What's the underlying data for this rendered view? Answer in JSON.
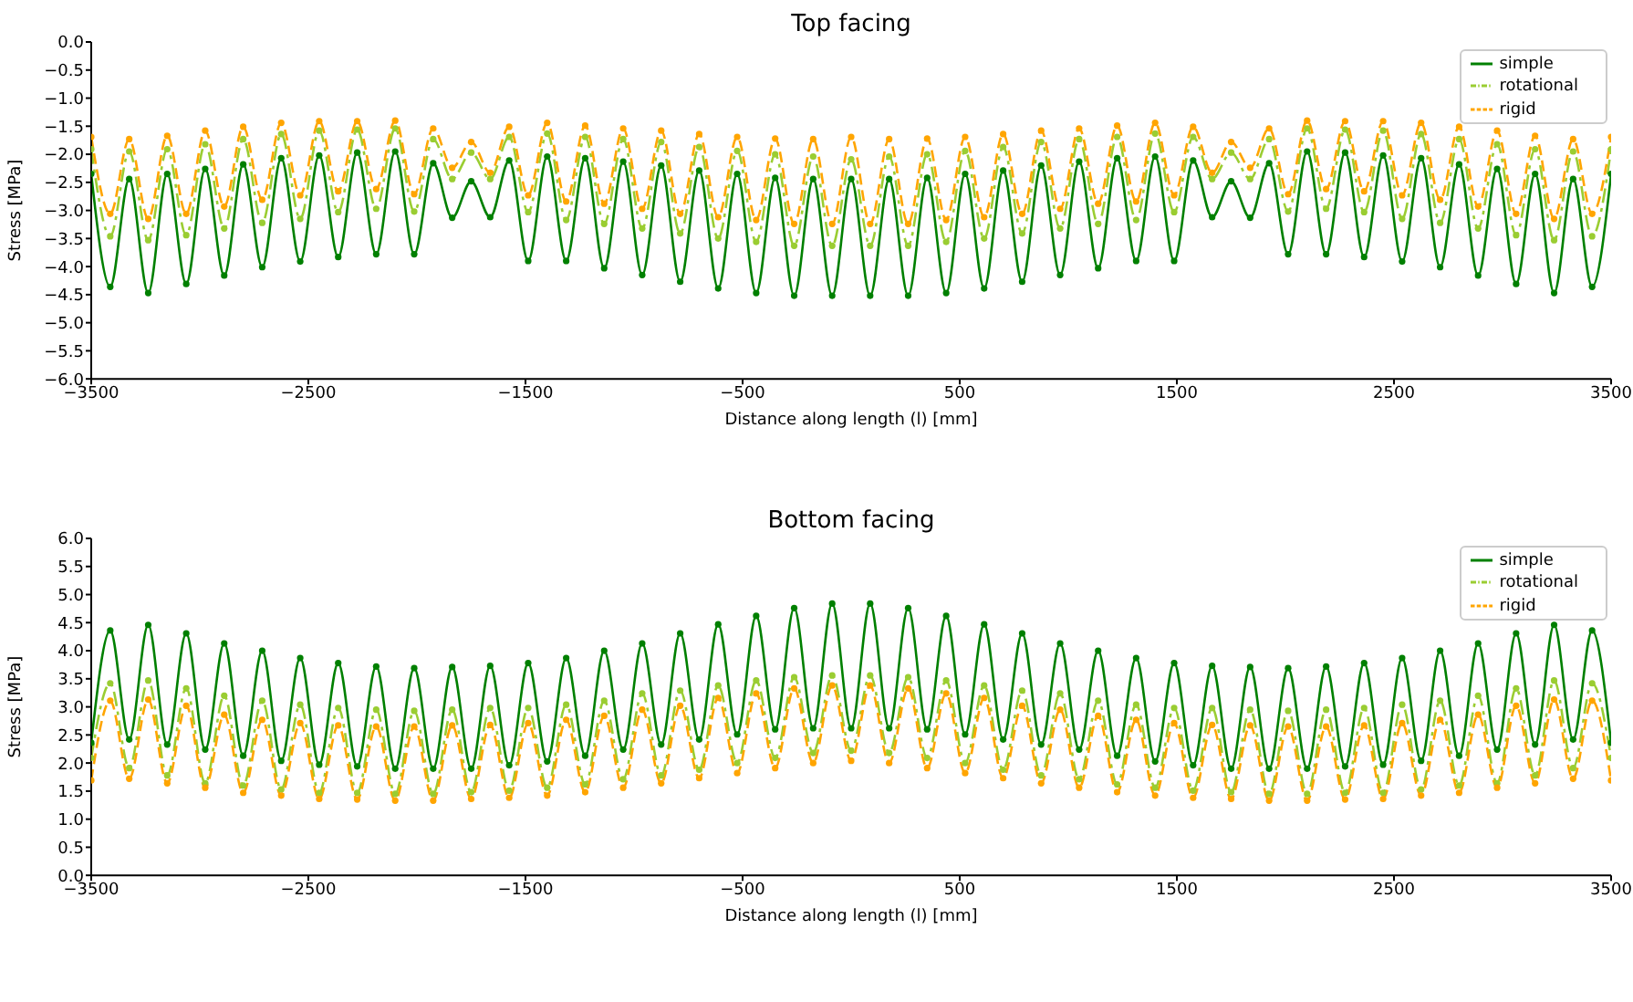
{
  "chart_data": [
    {
      "type": "line",
      "title": "Top facing",
      "xlabel": "Distance along length (l) [mm]",
      "ylabel": "Stress [MPa]",
      "x": [
        -3500,
        -3412.5,
        -3325,
        -3237.5,
        -3150,
        -3062.5,
        -2975,
        -2887.5,
        -2800,
        -2712.5,
        -2625,
        -2537.5,
        -2450,
        -2362.5,
        -2275,
        -2187.5,
        -2100,
        -2012.5,
        -1925,
        -1837.5,
        -1750,
        -1662.5,
        -1575,
        -1487.5,
        -1400,
        -1312.5,
        -1225,
        -1137.5,
        -1050,
        -962.5,
        -875,
        -787.5,
        -700,
        -612.5,
        -525,
        -437.5,
        -350,
        -262.5,
        -175,
        -87.5,
        0,
        87.5,
        175,
        262.5,
        350,
        437.5,
        525,
        612.5,
        700,
        787.5,
        875,
        962.5,
        1050,
        1137.5,
        1225,
        1312.5,
        1400,
        1487.5,
        1575,
        1662.5,
        1750,
        1837.5,
        1925,
        2012.5,
        2100,
        2187.5,
        2275,
        2362.5,
        2450,
        2537.5,
        2625,
        2712.5,
        2800,
        2887.5,
        2975,
        3062.5,
        3150,
        3237.5,
        3325,
        3412.5,
        3500
      ],
      "series": [
        {
          "name": "simple",
          "color": "#008000",
          "line_style": "solid",
          "values": [
            -2.35,
            -4.36,
            -2.44,
            -4.47,
            -2.35,
            -4.31,
            -2.26,
            -4.16,
            -2.18,
            -4.01,
            -2.07,
            -3.91,
            -2.02,
            -3.83,
            -1.97,
            -3.78,
            -1.95,
            -3.78,
            -2.16,
            -3.13,
            -2.48,
            -3.12,
            -2.11,
            -3.9,
            -2.04,
            -3.9,
            -2.07,
            -4.03,
            -2.13,
            -4.15,
            -2.2,
            -4.27,
            -2.29,
            -4.39,
            -2.35,
            -4.47,
            -2.42,
            -4.52,
            -2.44,
            -4.52,
            -2.44,
            -4.52,
            -2.44,
            -4.52,
            -2.42,
            -4.47,
            -2.35,
            -4.39,
            -2.29,
            -4.27,
            -2.2,
            -4.15,
            -2.13,
            -4.03,
            -2.07,
            -3.9,
            -2.04,
            -3.9,
            -2.11,
            -3.12,
            -2.48,
            -3.13,
            -2.16,
            -3.78,
            -1.95,
            -3.78,
            -1.97,
            -3.83,
            -2.02,
            -3.91,
            -2.07,
            -4.01,
            -2.18,
            -4.16,
            -2.26,
            -4.31,
            -2.35,
            -4.47,
            -2.44,
            -4.36,
            -2.35
          ]
        },
        {
          "name": "rotational",
          "color": "#9acd32",
          "line_style": "dashdot",
          "values": [
            -1.91,
            -3.46,
            -1.95,
            -3.53,
            -1.91,
            -3.44,
            -1.82,
            -3.32,
            -1.73,
            -3.22,
            -1.64,
            -3.15,
            -1.58,
            -3.03,
            -1.56,
            -2.97,
            -1.54,
            -3.02,
            -1.73,
            -2.44,
            -1.97,
            -2.44,
            -1.69,
            -3.03,
            -1.63,
            -3.17,
            -1.69,
            -3.24,
            -1.73,
            -3.32,
            -1.78,
            -3.41,
            -1.87,
            -3.5,
            -1.94,
            -3.56,
            -2.0,
            -3.63,
            -2.04,
            -3.63,
            -2.09,
            -3.63,
            -2.04,
            -3.63,
            -2.0,
            -3.56,
            -1.94,
            -3.5,
            -1.87,
            -3.41,
            -1.78,
            -3.32,
            -1.73,
            -3.24,
            -1.69,
            -3.17,
            -1.63,
            -3.03,
            -1.69,
            -2.44,
            -1.97,
            -2.44,
            -1.73,
            -3.02,
            -1.54,
            -2.97,
            -1.56,
            -3.03,
            -1.58,
            -3.15,
            -1.64,
            -3.22,
            -1.73,
            -3.32,
            -1.82,
            -3.44,
            -1.91,
            -3.53,
            -1.95,
            -3.46,
            -1.91
          ]
        },
        {
          "name": "rigid",
          "color": "#ffa500",
          "line_style": "dashed",
          "values": [
            -1.69,
            -3.06,
            -1.73,
            -3.15,
            -1.67,
            -3.06,
            -1.58,
            -2.93,
            -1.51,
            -2.81,
            -1.44,
            -2.73,
            -1.41,
            -2.66,
            -1.41,
            -2.62,
            -1.4,
            -2.71,
            -1.54,
            -2.24,
            -1.78,
            -2.33,
            -1.51,
            -2.73,
            -1.44,
            -2.84,
            -1.49,
            -2.88,
            -1.54,
            -2.97,
            -1.58,
            -3.06,
            -1.64,
            -3.12,
            -1.69,
            -3.17,
            -1.72,
            -3.24,
            -1.73,
            -3.24,
            -1.69,
            -3.24,
            -1.73,
            -3.24,
            -1.72,
            -3.17,
            -1.69,
            -3.12,
            -1.64,
            -3.06,
            -1.58,
            -2.97,
            -1.54,
            -2.88,
            -1.49,
            -2.84,
            -1.44,
            -2.73,
            -1.51,
            -2.33,
            -1.78,
            -2.24,
            -1.54,
            -2.71,
            -1.4,
            -2.62,
            -1.41,
            -2.66,
            -1.41,
            -2.73,
            -1.44,
            -2.81,
            -1.51,
            -2.93,
            -1.58,
            -3.06,
            -1.67,
            -3.15,
            -1.73,
            -3.06,
            -1.69
          ]
        }
      ],
      "xlim": [
        -3500,
        3500
      ],
      "xticks": [
        {
          "value": -3500,
          "label": "−3500"
        },
        {
          "value": -2500,
          "label": "−2500"
        },
        {
          "value": -1500,
          "label": "−1500"
        },
        {
          "value": -500,
          "label": "−500"
        },
        500,
        1500,
        2500,
        3500
      ],
      "ylim": [
        -6,
        0
      ],
      "yticks": [
        {
          "value": -6,
          "label": "−6.0"
        },
        {
          "value": -5.5,
          "label": "−5.5"
        },
        {
          "value": -5,
          "label": "−5.0"
        },
        {
          "value": -4.5,
          "label": "−4.5"
        },
        {
          "value": -4,
          "label": "−4.0"
        },
        {
          "value": -3.5,
          "label": "−3.5"
        },
        {
          "value": -3,
          "label": "−3.0"
        },
        {
          "value": -2.5,
          "label": "−2.5"
        },
        {
          "value": -2,
          "label": "−2.0"
        },
        {
          "value": -1.5,
          "label": "−1.5"
        },
        {
          "value": -1,
          "label": "−1.0"
        },
        {
          "value": -0.5,
          "label": "−0.5"
        },
        {
          "value": 0,
          "label": "0.0"
        }
      ],
      "grid": false,
      "legend": "top right",
      "marker": "circle"
    },
    {
      "type": "line",
      "title": "Bottom facing",
      "xlabel": "Distance along length (l) [mm]",
      "ylabel": "Stress [MPa]",
      "x": [
        -3500,
        -3412.5,
        -3325,
        -3237.5,
        -3150,
        -3062.5,
        -2975,
        -2887.5,
        -2800,
        -2712.5,
        -2625,
        -2537.5,
        -2450,
        -2362.5,
        -2275,
        -2187.5,
        -2100,
        -2012.5,
        -1925,
        -1837.5,
        -1750,
        -1662.5,
        -1575,
        -1487.5,
        -1400,
        -1312.5,
        -1225,
        -1137.5,
        -1050,
        -962.5,
        -875,
        -787.5,
        -700,
        -612.5,
        -525,
        -437.5,
        -350,
        -262.5,
        -175,
        -87.5,
        0,
        87.5,
        175,
        262.5,
        350,
        437.5,
        525,
        612.5,
        700,
        787.5,
        875,
        962.5,
        1050,
        1137.5,
        1225,
        1312.5,
        1400,
        1487.5,
        1575,
        1662.5,
        1750,
        1837.5,
        1925,
        2012.5,
        2100,
        2187.5,
        2275,
        2362.5,
        2450,
        2537.5,
        2625,
        2712.5,
        2800,
        2887.5,
        2975,
        3062.5,
        3150,
        3237.5,
        3325,
        3412.5,
        3500
      ],
      "series": [
        {
          "name": "simple",
          "color": "#008000",
          "line_style": "solid",
          "values": [
            2.36,
            4.36,
            2.42,
            4.46,
            2.33,
            4.31,
            2.24,
            4.13,
            2.13,
            4.0,
            2.04,
            3.87,
            1.97,
            3.78,
            1.94,
            3.72,
            1.9,
            3.69,
            1.9,
            3.71,
            1.9,
            3.73,
            1.96,
            3.78,
            2.03,
            3.87,
            2.13,
            4.0,
            2.24,
            4.13,
            2.33,
            4.31,
            2.42,
            4.47,
            2.51,
            4.62,
            2.6,
            4.76,
            2.62,
            4.84,
            2.62,
            4.84,
            2.62,
            4.76,
            2.6,
            4.62,
            2.51,
            4.47,
            2.42,
            4.31,
            2.33,
            4.13,
            2.24,
            4.0,
            2.13,
            3.87,
            2.03,
            3.78,
            1.96,
            3.73,
            1.9,
            3.71,
            1.9,
            3.69,
            1.9,
            3.72,
            1.94,
            3.78,
            1.97,
            3.87,
            2.04,
            4.0,
            2.13,
            4.13,
            2.24,
            4.31,
            2.33,
            4.46,
            2.42,
            4.36,
            2.36
          ]
        },
        {
          "name": "rotational",
          "color": "#9acd32",
          "line_style": "dashdot",
          "values": [
            2.09,
            3.42,
            1.91,
            3.47,
            1.78,
            3.33,
            1.64,
            3.2,
            1.6,
            3.11,
            1.53,
            3.04,
            1.47,
            2.98,
            1.47,
            2.95,
            1.45,
            2.93,
            1.45,
            2.95,
            1.48,
            2.98,
            1.51,
            2.98,
            1.56,
            3.04,
            1.62,
            3.11,
            1.71,
            3.24,
            1.78,
            3.29,
            1.88,
            3.38,
            2.0,
            3.47,
            2.09,
            3.53,
            2.18,
            3.56,
            2.22,
            3.56,
            2.18,
            3.53,
            2.09,
            3.47,
            2.0,
            3.38,
            1.88,
            3.29,
            1.78,
            3.24,
            1.71,
            3.11,
            1.62,
            3.04,
            1.56,
            2.98,
            1.51,
            2.98,
            1.48,
            2.95,
            1.45,
            2.93,
            1.45,
            2.95,
            1.47,
            2.98,
            1.47,
            3.04,
            1.53,
            3.11,
            1.6,
            3.2,
            1.64,
            3.33,
            1.78,
            3.47,
            1.91,
            3.42,
            2.09
          ]
        },
        {
          "name": "rigid",
          "color": "#ffa500",
          "line_style": "dashed",
          "values": [
            1.69,
            3.11,
            1.72,
            3.13,
            1.64,
            3.02,
            1.56,
            2.86,
            1.47,
            2.77,
            1.42,
            2.71,
            1.36,
            2.67,
            1.35,
            2.65,
            1.33,
            2.65,
            1.33,
            2.67,
            1.36,
            2.68,
            1.38,
            2.71,
            1.42,
            2.77,
            1.48,
            2.84,
            1.56,
            2.95,
            1.64,
            3.02,
            1.73,
            3.16,
            1.82,
            3.24,
            1.91,
            3.33,
            2.0,
            3.38,
            2.04,
            3.38,
            2.0,
            3.33,
            1.91,
            3.24,
            1.82,
            3.16,
            1.73,
            3.02,
            1.64,
            2.95,
            1.56,
            2.84,
            1.48,
            2.77,
            1.42,
            2.71,
            1.38,
            2.68,
            1.36,
            2.67,
            1.33,
            2.65,
            1.33,
            2.65,
            1.35,
            2.67,
            1.36,
            2.71,
            1.42,
            2.77,
            1.47,
            2.86,
            1.56,
            3.02,
            1.64,
            3.13,
            1.72,
            3.11,
            1.69
          ]
        }
      ],
      "xlim": [
        -3500,
        3500
      ],
      "xticks": [
        {
          "value": -3500,
          "label": "−3500"
        },
        {
          "value": -2500,
          "label": "−2500"
        },
        {
          "value": -1500,
          "label": "−1500"
        },
        {
          "value": -500,
          "label": "−500"
        },
        500,
        1500,
        2500,
        3500
      ],
      "ylim": [
        0,
        6
      ],
      "yticks": [
        {
          "value": 0,
          "label": "0.0"
        },
        {
          "value": 0.5,
          "label": "0.5"
        },
        {
          "value": 1,
          "label": "1.0"
        },
        {
          "value": 1.5,
          "label": "1.5"
        },
        {
          "value": 2,
          "label": "2.0"
        },
        {
          "value": 2.5,
          "label": "2.5"
        },
        {
          "value": 3,
          "label": "3.0"
        },
        {
          "value": 3.5,
          "label": "3.5"
        },
        {
          "value": 4,
          "label": "4.0"
        },
        {
          "value": 4.5,
          "label": "4.5"
        },
        {
          "value": 5,
          "label": "5.0"
        },
        {
          "value": 5.5,
          "label": "5.5"
        },
        {
          "value": 6,
          "label": "6.0"
        }
      ],
      "grid": false,
      "legend": "top right",
      "marker": "circle"
    }
  ]
}
